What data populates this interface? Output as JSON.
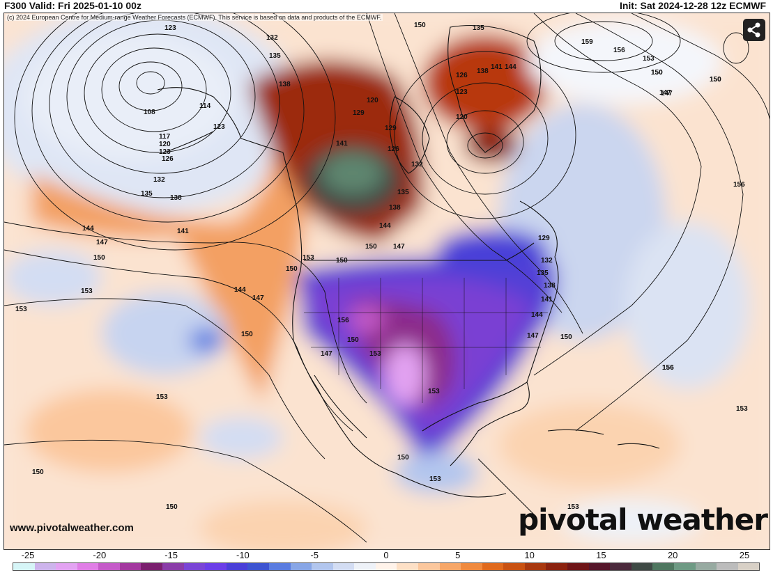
{
  "header": {
    "valid": "F300 Valid: Fri 2025-01-10 00z",
    "init": "Init: Sat 2024-12-28 12z ECMWF"
  },
  "credit": "(c) 2024 European Centre for Medium-range Weather Forecasts (ECMWF). This service is based on data and products of the ECMWF.",
  "site_url": "www.pivotalweather.com",
  "logo": "pivotal weather",
  "share_icon": "share-icon",
  "colorbar": {
    "ticks": [
      "-25",
      "-20",
      "-15",
      "-10",
      "-5",
      "0",
      "5",
      "10",
      "15",
      "20",
      "25"
    ],
    "colors": [
      "#d6f5f7",
      "#cdb4ec",
      "#e3a3f2",
      "#e07ee6",
      "#c55bc9",
      "#a3389f",
      "#7a1f6e",
      "#8a3ca8",
      "#7a45d6",
      "#6b3ee8",
      "#4a3fd8",
      "#3d54d1",
      "#5a7ce0",
      "#88a6e6",
      "#b2c6ee",
      "#d3ddf3",
      "#eef2f8",
      "#fff3ea",
      "#fde0c6",
      "#fbc79d",
      "#f7a768",
      "#f08a3e",
      "#e06a1d",
      "#c95212",
      "#a8380f",
      "#8b220f",
      "#6e1517",
      "#55162a",
      "#4b2a3c",
      "#3f4a45",
      "#4f7760",
      "#6e9a84",
      "#97aaa1",
      "#bcbcbc",
      "#d8d0c6"
    ]
  },
  "contour_labels": [
    "123",
    "132",
    "135",
    "138",
    "108",
    "114",
    "123",
    "117",
    "120",
    "123",
    "126",
    "132",
    "135",
    "138",
    "141",
    "144",
    "147",
    "150",
    "153",
    "153",
    "150",
    "147",
    "144",
    "150",
    "150",
    "153",
    "156",
    "150",
    "147",
    "153",
    "150",
    "153",
    "150",
    "150",
    "153",
    "153",
    "129",
    "120",
    "126",
    "129",
    "132",
    "135",
    "138",
    "144",
    "141",
    "147",
    "150",
    "129",
    "132",
    "135",
    "138",
    "141",
    "144",
    "147",
    "150",
    "156",
    "150",
    "147",
    "150",
    "159",
    "156",
    "153",
    "150",
    "147",
    "150",
    "156",
    "156",
    "153",
    "135",
    "126",
    "123",
    "138",
    "141",
    "144",
    "120",
    "153",
    "150"
  ]
}
